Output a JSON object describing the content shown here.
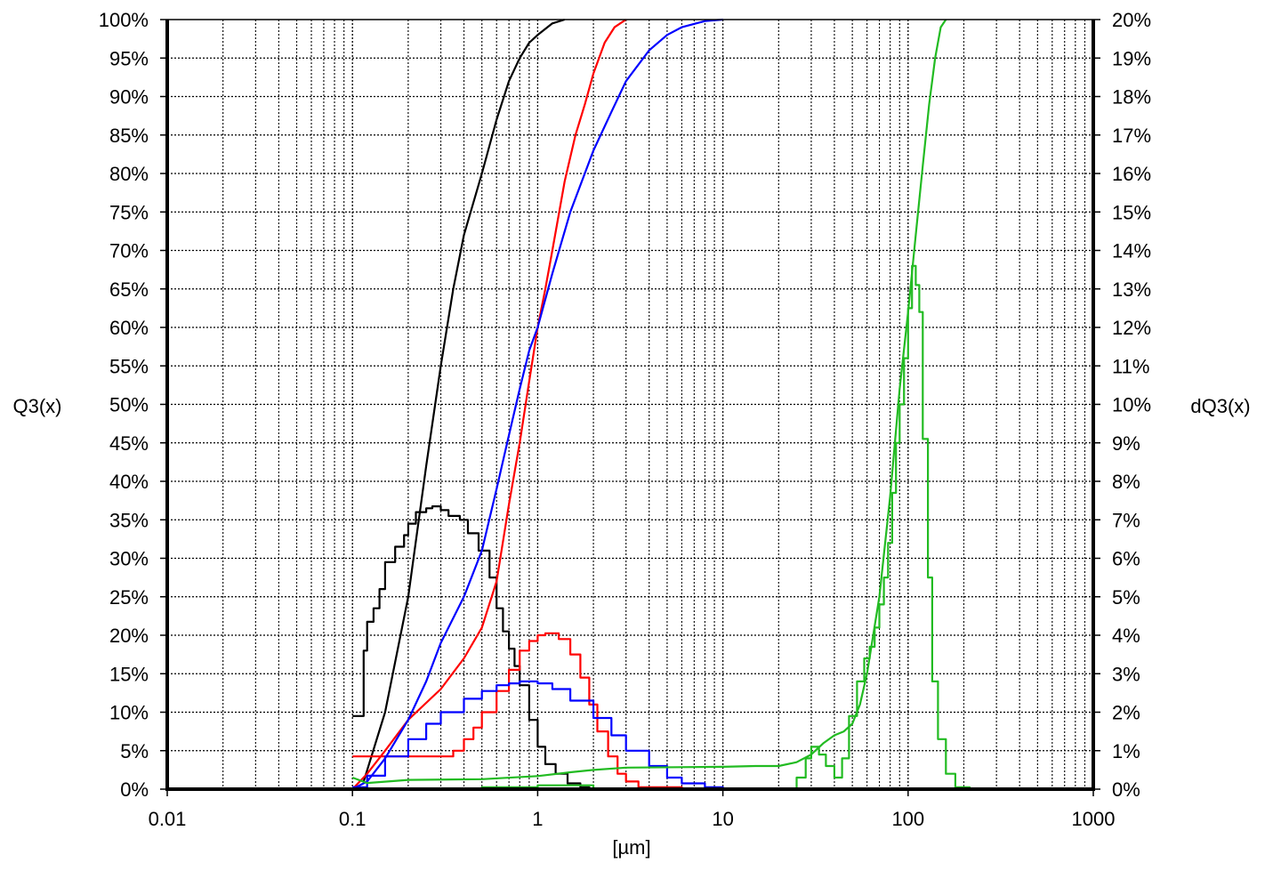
{
  "chart_data": {
    "type": "line",
    "xlabel": "[µm]",
    "ylabel_left": "Q3(x)",
    "ylabel_right": "dQ3(x)",
    "x_scale": "log",
    "xlim": [
      0.01,
      1000
    ],
    "ylim_left": [
      0,
      100
    ],
    "ylim_right": [
      0,
      20
    ],
    "grid": true,
    "x_tick_labels": [
      "0.01",
      "0.1",
      "1",
      "10",
      "100",
      "1000"
    ],
    "x_tick_values": [
      0.01,
      0.1,
      1,
      10,
      100,
      1000
    ],
    "y_left_tick_labels": [
      "0%",
      "5%",
      "10%",
      "15%",
      "20%",
      "25%",
      "30%",
      "35%",
      "40%",
      "45%",
      "50%",
      "55%",
      "60%",
      "65%",
      "70%",
      "75%",
      "80%",
      "85%",
      "90%",
      "95%",
      "100%"
    ],
    "y_right_tick_labels": [
      "0%",
      "1%",
      "2%",
      "3%",
      "4%",
      "5%",
      "6%",
      "7%",
      "8%",
      "9%",
      "10%",
      "11%",
      "12%",
      "13%",
      "14%",
      "15%",
      "16%",
      "17%",
      "18%",
      "19%",
      "20%"
    ],
    "series": [
      {
        "color": "#000000",
        "kind": "cumulative",
        "axis": "left",
        "x": [
          0.115,
          0.15,
          0.2,
          0.25,
          0.3,
          0.35,
          0.4,
          0.5,
          0.6,
          0.7,
          0.8,
          0.9,
          1.0,
          1.2,
          1.4
        ],
        "y": [
          1,
          10,
          25,
          42,
          55,
          65,
          72,
          80,
          87,
          92,
          95,
          97,
          98,
          99.5,
          100
        ]
      },
      {
        "color": "#000000",
        "kind": "density",
        "axis": "right",
        "x": [
          0.1,
          0.115,
          0.12,
          0.13,
          0.14,
          0.15,
          0.17,
          0.19,
          0.2,
          0.22,
          0.25,
          0.27,
          0.3,
          0.33,
          0.38,
          0.42,
          0.48,
          0.55,
          0.6,
          0.65,
          0.7,
          0.75,
          0.8,
          0.9,
          1.0,
          1.1,
          1.25,
          1.45,
          1.7,
          1.9
        ],
        "y": [
          1.9,
          3.6,
          4.35,
          4.7,
          5.2,
          5.9,
          6.3,
          6.6,
          6.9,
          7.2,
          7.3,
          7.35,
          7.25,
          7.1,
          7.0,
          6.65,
          6.2,
          5.5,
          4.7,
          4.1,
          3.65,
          3.2,
          2.7,
          1.8,
          1.1,
          0.65,
          0.4,
          0.15,
          0.05,
          0
        ]
      },
      {
        "color": "#ff0000",
        "kind": "cumulative",
        "axis": "left",
        "x": [
          0.1,
          0.12,
          0.15,
          0.2,
          0.3,
          0.4,
          0.5,
          0.6,
          0.7,
          0.8,
          0.9,
          1.0,
          1.1,
          1.2,
          1.4,
          1.6,
          1.8,
          2.0,
          2.3,
          2.6,
          3.0
        ],
        "y": [
          0,
          2,
          5,
          9,
          13,
          17,
          21,
          27,
          37,
          45,
          53,
          60,
          65,
          70,
          79,
          85,
          89,
          93,
          97,
          99,
          100
        ]
      },
      {
        "color": "#ff0000",
        "kind": "density",
        "axis": "right",
        "x": [
          0.1,
          0.3,
          0.35,
          0.4,
          0.45,
          0.5,
          0.6,
          0.7,
          0.8,
          0.9,
          1.0,
          1.1,
          1.2,
          1.3,
          1.5,
          1.7,
          1.9,
          2.1,
          2.4,
          2.7,
          3.0,
          3.5,
          6.0
        ],
        "y": [
          0.85,
          0.85,
          1.0,
          1.3,
          1.6,
          2.0,
          2.55,
          3.1,
          3.6,
          3.85,
          4.0,
          4.05,
          4.05,
          3.9,
          3.5,
          2.9,
          2.2,
          1.5,
          0.85,
          0.4,
          0.2,
          0.05,
          0
        ]
      },
      {
        "color": "#0000ff",
        "kind": "cumulative",
        "axis": "left",
        "x": [
          0.1,
          0.12,
          0.15,
          0.2,
          0.25,
          0.3,
          0.4,
          0.5,
          0.6,
          0.7,
          0.8,
          0.9,
          1.0,
          1.2,
          1.5,
          2.0,
          2.5,
          3.0,
          4.0,
          5.0,
          6.0,
          8.0,
          10.0
        ],
        "y": [
          0,
          1,
          4,
          9,
          14,
          19,
          25,
          31,
          39,
          46,
          52,
          57,
          60,
          67,
          75,
          83,
          88,
          92,
          96,
          98,
          99,
          99.8,
          100
        ]
      },
      {
        "color": "#0000ff",
        "kind": "density",
        "axis": "right",
        "x": [
          0.1,
          0.12,
          0.15,
          0.2,
          0.25,
          0.3,
          0.4,
          0.5,
          0.6,
          0.7,
          0.8,
          0.9,
          1.0,
          1.2,
          1.5,
          2.0,
          2.5,
          3.0,
          4.0,
          5.0,
          6.0,
          8.0,
          10.0,
          15.0,
          30.0
        ],
        "y": [
          0.05,
          0.35,
          0.85,
          1.3,
          1.7,
          2.0,
          2.35,
          2.55,
          2.7,
          2.75,
          2.8,
          2.8,
          2.75,
          2.6,
          2.3,
          1.85,
          1.4,
          1.0,
          0.6,
          0.3,
          0.15,
          0.05,
          0.02,
          0.01,
          0
        ]
      },
      {
        "color": "#22bb22",
        "kind": "cumulative",
        "axis": "left",
        "x": [
          0.1,
          0.12,
          0.2,
          0.5,
          1.0,
          1.5,
          2.0,
          3.0,
          10.0,
          15.0,
          20.0,
          25.0,
          30.0,
          35.0,
          40.0,
          45.0,
          50.0,
          55.0,
          60.0,
          70.0,
          80.0,
          90.0,
          100.0,
          110.0,
          120.0,
          130.0,
          140.0,
          150.0,
          160.0
        ],
        "y": [
          1.5,
          0.8,
          1.2,
          1.3,
          1.7,
          2.2,
          2.5,
          2.8,
          2.9,
          3.0,
          3.0,
          3.5,
          4.5,
          6.0,
          7.0,
          7.5,
          8.5,
          11,
          15,
          25,
          38,
          52,
          62,
          72,
          81,
          89,
          95,
          99,
          100
        ]
      },
      {
        "color": "#22bb22",
        "kind": "density",
        "axis": "right",
        "x": [
          0.1,
          0.5,
          1.0,
          2.0,
          20.0,
          25.0,
          28.0,
          30.0,
          33.0,
          36.0,
          40.0,
          44.0,
          48.0,
          53.0,
          58.0,
          62.0,
          66.0,
          70.0,
          74.0,
          78.0,
          82.0,
          86.0,
          90.0,
          95.0,
          100.0,
          105.0,
          110.0,
          115.0,
          120.0,
          128.0,
          135.0,
          145.0,
          160.0,
          180.0,
          215.0
        ],
        "y": [
          0,
          0.05,
          0.1,
          0.02,
          0,
          0.3,
          0.8,
          1.1,
          0.9,
          0.6,
          0.3,
          0.8,
          1.9,
          2.8,
          3.4,
          3.7,
          4.2,
          4.8,
          5.5,
          6.4,
          7.7,
          9.0,
          10.0,
          11.2,
          12.5,
          13.6,
          13.1,
          12.4,
          9.1,
          5.5,
          2.8,
          1.3,
          0.4,
          0.05,
          0
        ]
      }
    ]
  }
}
